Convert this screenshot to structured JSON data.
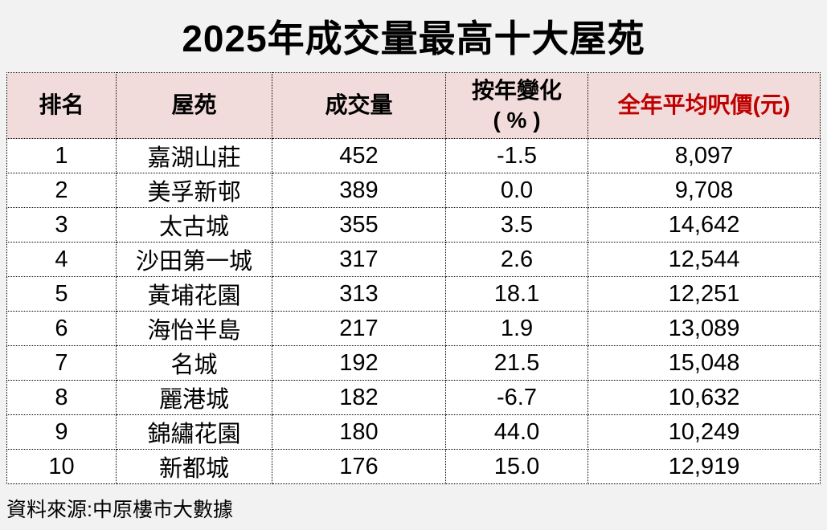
{
  "page": {
    "title": "2025年成交量最高十大屋苑",
    "source": "資料來源:中原樓市大數據"
  },
  "colors": {
    "page_bg": "#f2f2f2",
    "header_bg": "#f2dcdb",
    "header_accent_text": "#c00000",
    "negative_value_text": "#ff0000",
    "cell_bg": "#ffffff",
    "border": "#000000"
  },
  "table": {
    "headers": {
      "rank": "排名",
      "estate": "屋苑",
      "volume": "成交量",
      "yoy_line1": "按年變化",
      "yoy_line2": "( % )",
      "avg_price": "全年平均呎價(元)"
    },
    "rows": [
      {
        "rank": "1",
        "estate": "嘉湖山莊",
        "volume": "452",
        "yoy": "-1.5",
        "price": "8,097"
      },
      {
        "rank": "2",
        "estate": "美孚新邨",
        "volume": "389",
        "yoy": "0.0",
        "price": "9,708"
      },
      {
        "rank": "3",
        "estate": "太古城",
        "volume": "355",
        "yoy": "3.5",
        "price": "14,642"
      },
      {
        "rank": "4",
        "estate": "沙田第一城",
        "volume": "317",
        "yoy": "2.6",
        "price": "12,544"
      },
      {
        "rank": "5",
        "estate": "黃埔花園",
        "volume": "313",
        "yoy": "18.1",
        "price": "12,251"
      },
      {
        "rank": "6",
        "estate": "海怡半島",
        "volume": "217",
        "yoy": "1.9",
        "price": "13,089"
      },
      {
        "rank": "7",
        "estate": "名城",
        "volume": "192",
        "yoy": "21.5",
        "price": "15,048"
      },
      {
        "rank": "8",
        "estate": "麗港城",
        "volume": "182",
        "yoy": "-6.7",
        "price": "10,632"
      },
      {
        "rank": "9",
        "estate": "錦繡花園",
        "volume": "180",
        "yoy": "44.0",
        "price": "10,249"
      },
      {
        "rank": "10",
        "estate": "新都城",
        "volume": "176",
        "yoy": "15.0",
        "price": "12,919"
      }
    ]
  },
  "chart_data": {
    "type": "table",
    "title": "2025年成交量最高十大屋苑",
    "columns": [
      "排名",
      "屋苑",
      "成交量",
      "按年變化（%）",
      "全年平均呎價(元)"
    ],
    "rows": [
      [
        1,
        "嘉湖山莊",
        452,
        -1.5,
        8097
      ],
      [
        2,
        "美孚新邨",
        389,
        0.0,
        9708
      ],
      [
        3,
        "太古城",
        355,
        3.5,
        14642
      ],
      [
        4,
        "沙田第一城",
        317,
        2.6,
        12544
      ],
      [
        5,
        "黃埔花園",
        313,
        18.1,
        12251
      ],
      [
        6,
        "海怡半島",
        217,
        1.9,
        13089
      ],
      [
        7,
        "名城",
        192,
        21.5,
        15048
      ],
      [
        8,
        "麗港城",
        182,
        -6.7,
        10632
      ],
      [
        9,
        "錦繡花園",
        180,
        44.0,
        10249
      ],
      [
        10,
        "新都城",
        176,
        15.0,
        12919
      ]
    ],
    "source": "資料來源:中原樓市大數據",
    "notes": "Negative 按年變化 values rendered in red; 全年平均呎價 header rendered in dark red"
  }
}
